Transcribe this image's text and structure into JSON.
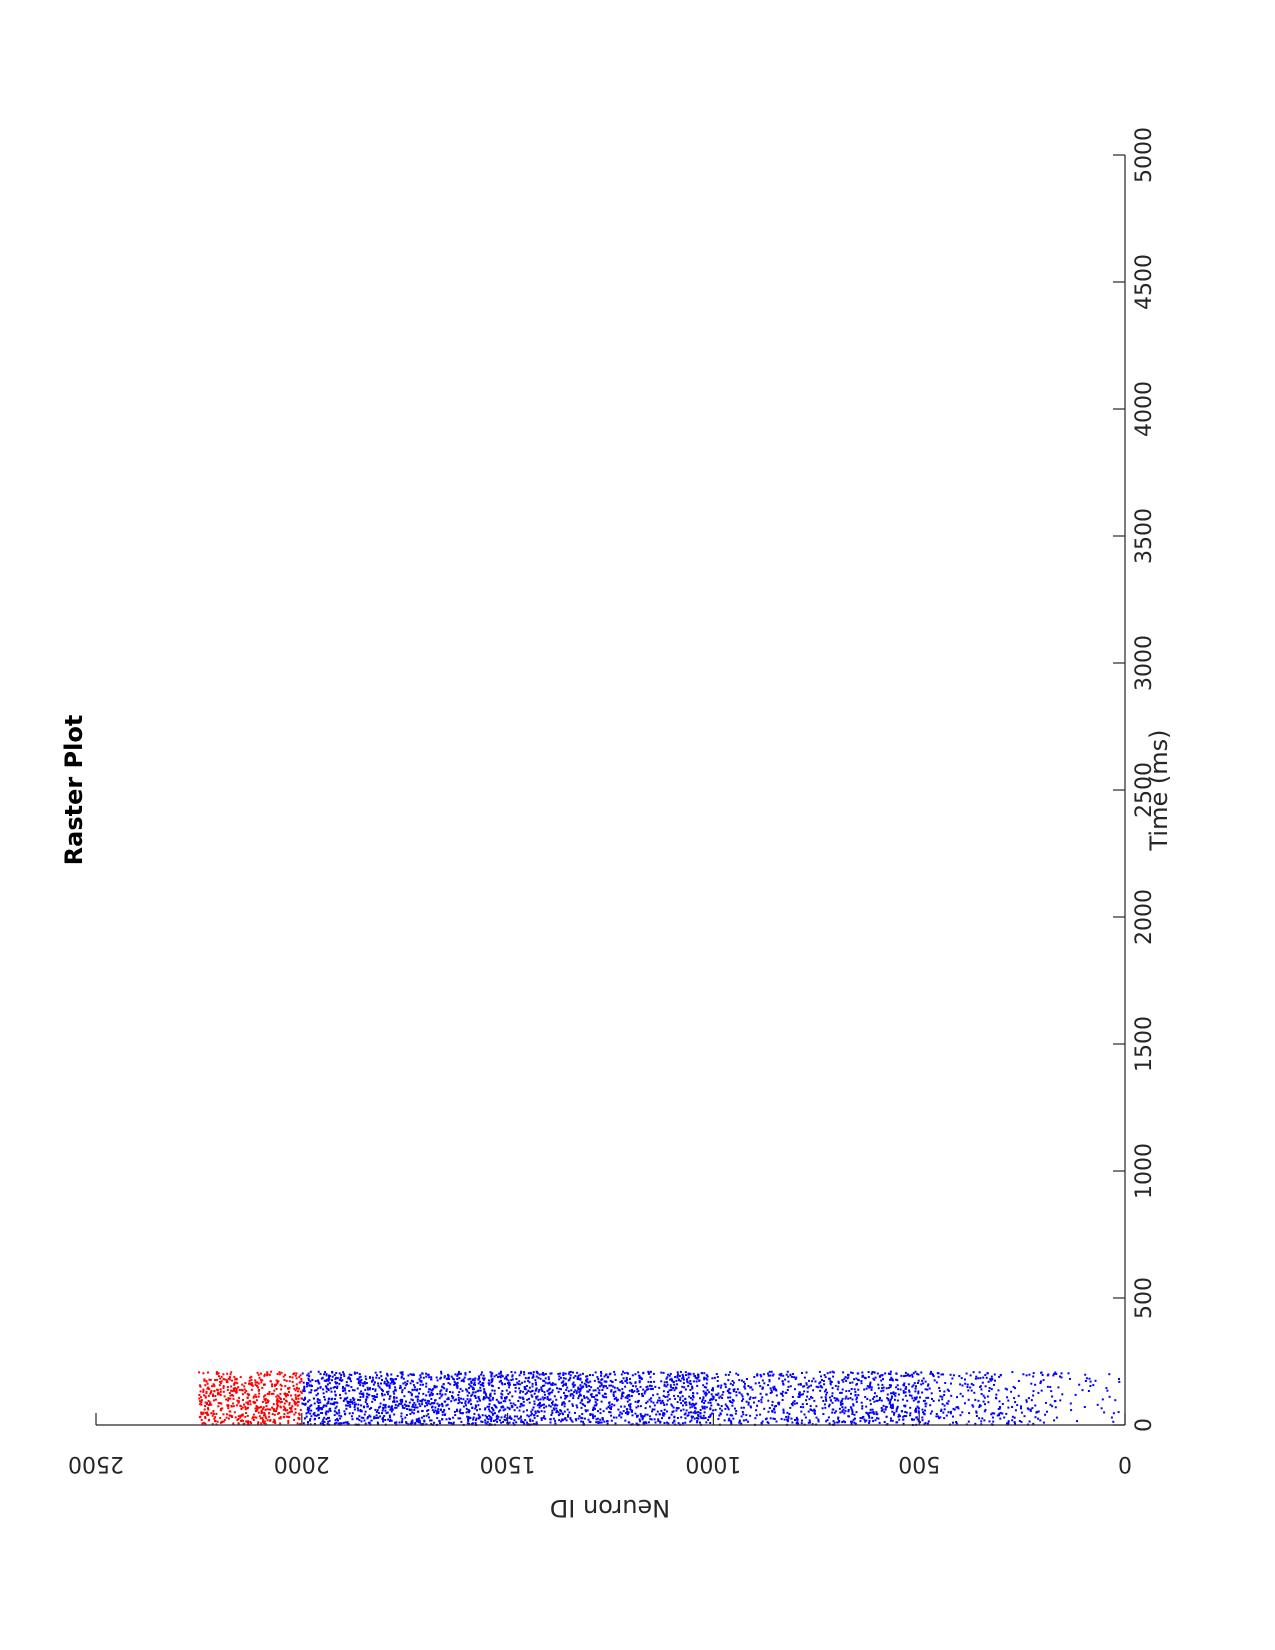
{
  "chart_data": {
    "type": "scatter",
    "title": "Raster Plot",
    "xlabel": "Time (ms)",
    "ylabel": "Neuron ID",
    "xlim": [
      0,
      5000
    ],
    "ylim": [
      0,
      2500
    ],
    "x_ticks": [
      "0",
      "500",
      "1000",
      "1500",
      "2000",
      "2500",
      "3000",
      "3500",
      "4000",
      "4500",
      "5000"
    ],
    "y_ticks": [
      "0",
      "500",
      "1000",
      "1500",
      "2000",
      "2500"
    ],
    "x_tick_values": [
      0,
      500,
      1000,
      1500,
      2000,
      2500,
      3000,
      3500,
      4000,
      4500,
      5000
    ],
    "y_tick_values": [
      0,
      500,
      1000,
      1500,
      2000,
      2500
    ],
    "orientation": "rotated-90",
    "grid": false,
    "series": [
      {
        "color": "#0000ff",
        "neuron_range": [
          0,
          2000
        ],
        "time_range": [
          0,
          210
        ],
        "regions": [
          {
            "neuron_range": [
              1800,
              2000
            ],
            "density": 1.0
          },
          {
            "neuron_range": [
              1550,
              1800
            ],
            "density": 1.0
          },
          {
            "neuron_range": [
              1300,
              1550
            ],
            "density": 1.0
          },
          {
            "neuron_range": [
              1000,
              1300
            ],
            "density": 0.9
          },
          {
            "neuron_range": [
              700,
              1000
            ],
            "density": 0.6
          },
          {
            "neuron_range": [
              500,
              700
            ],
            "density": 0.8
          },
          {
            "neuron_range": [
              300,
              500
            ],
            "density": 0.45
          },
          {
            "neuron_range": [
              150,
              300
            ],
            "density": 0.3
          },
          {
            "neuron_range": [
              0,
              150
            ],
            "density": 0.1
          }
        ]
      },
      {
        "color": "#ff0000",
        "neuron_range": [
          2000,
          2250
        ],
        "time_range": [
          0,
          210
        ],
        "regions": [
          {
            "neuron_range": [
              2000,
              2250
            ],
            "density": 1.0
          }
        ]
      }
    ]
  }
}
